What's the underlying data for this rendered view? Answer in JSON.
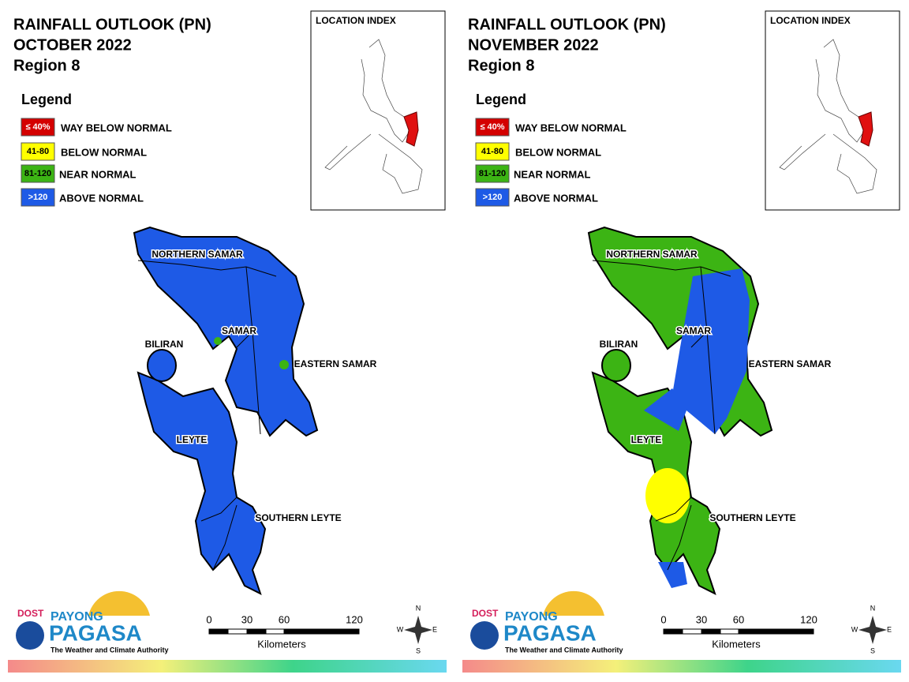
{
  "panels": [
    {
      "title_lines": [
        "RAINFALL OUTLOOK (PN)",
        "OCTOBER 2022",
        "Region 8"
      ],
      "legend_title": "Legend",
      "legend": [
        {
          "range": "≤ 40%",
          "label": "WAY BELOW NORMAL",
          "color": "#d40000"
        },
        {
          "range": "41-80",
          "label": "BELOW NORMAL",
          "color": "#ffff00"
        },
        {
          "range": "81-120",
          "label": "NEAR NORMAL",
          "color": "#3cb414"
        },
        {
          "range": ">120",
          "label": "ABOVE NORMAL",
          "color": "#1e5ae6"
        }
      ],
      "location_index": "LOCATION INDEX",
      "regions": [
        "NORTHERN SAMAR",
        "SAMAR",
        "EASTERN SAMAR",
        "BILIRAN",
        "LEYTE",
        "SOUTHERN LEYTE"
      ],
      "scale_ticks": [
        "0",
        "30",
        "60",
        "120"
      ],
      "scale_unit": "Kilometers",
      "compass": [
        "N",
        "E",
        "S",
        "W"
      ],
      "logo": {
        "dost": "DOST",
        "payong": "PAYONG",
        "pagasa": "PAGASA",
        "tagline": "The Weather and Climate Authority"
      }
    },
    {
      "title_lines": [
        "RAINFALL OUTLOOK (PN)",
        "NOVEMBER 2022",
        "Region 8"
      ],
      "legend_title": "Legend",
      "legend": [
        {
          "range": "≤ 40%",
          "label": "WAY BELOW NORMAL",
          "color": "#d40000"
        },
        {
          "range": "41-80",
          "label": "BELOW NORMAL",
          "color": "#ffff00"
        },
        {
          "range": "81-120",
          "label": "NEAR NORMAL",
          "color": "#3cb414"
        },
        {
          "range": ">120",
          "label": "ABOVE NORMAL",
          "color": "#1e5ae6"
        }
      ],
      "location_index": "LOCATION INDEX",
      "regions": [
        "NORTHERN SAMAR",
        "SAMAR",
        "EASTERN SAMAR",
        "BILIRAN",
        "LEYTE",
        "SOUTHERN LEYTE"
      ],
      "scale_ticks": [
        "0",
        "30",
        "60",
        "120"
      ],
      "scale_unit": "Kilometers",
      "compass": [
        "N",
        "E",
        "S",
        "W"
      ],
      "logo": {
        "dost": "DOST",
        "payong": "PAYONG",
        "pagasa": "PAGASA",
        "tagline": "The Weather and Climate Authority"
      }
    }
  ]
}
